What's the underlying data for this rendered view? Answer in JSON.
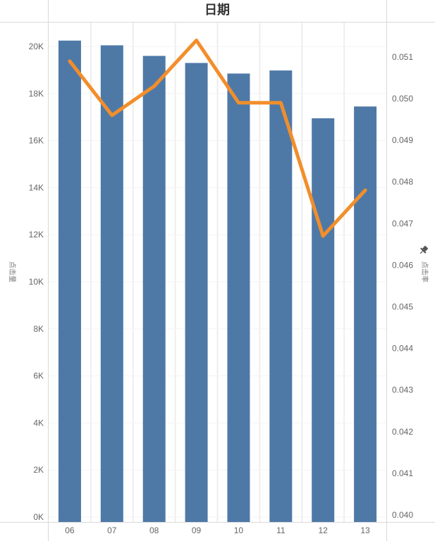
{
  "chart_data": {
    "type": "bar",
    "title": "日期",
    "xlabel": "",
    "categories": [
      "06",
      "07",
      "08",
      "09",
      "10",
      "11",
      "12",
      "13"
    ],
    "ylabel": "点击量",
    "ylim": [
      0,
      21000
    ],
    "y_ticks": [
      "0K",
      "2K",
      "4K",
      "6K",
      "8K",
      "10K",
      "12K",
      "14K",
      "16K",
      "18K",
      "20K"
    ],
    "y_tick_values": [
      0,
      2000,
      4000,
      6000,
      8000,
      10000,
      12000,
      14000,
      16000,
      18000,
      20000
    ],
    "y2label": "点击率",
    "y2lim": [
      0.04,
      0.0516
    ],
    "y2_ticks": [
      "0.040",
      "0.041",
      "0.042",
      "0.043",
      "0.044",
      "0.045",
      "0.046",
      "0.047",
      "0.048",
      "0.049",
      "0.050",
      "0.051"
    ],
    "y2_tick_values": [
      0.04,
      0.041,
      0.042,
      0.043,
      0.044,
      0.045,
      0.046,
      0.047,
      0.048,
      0.049,
      0.05,
      0.051
    ],
    "series": [
      {
        "type": "bar",
        "axis": "left",
        "color": "#4e79a7",
        "values": [
          20250,
          20050,
          19600,
          19300,
          18850,
          18980,
          16950,
          17450
        ]
      },
      {
        "type": "line",
        "axis": "right",
        "color": "#f28e2b",
        "values": [
          0.0509,
          0.0496,
          0.0503,
          0.0514,
          0.0499,
          0.0499,
          0.0467,
          0.0478
        ]
      }
    ],
    "grid": true,
    "pin_icon": "pin-icon"
  }
}
